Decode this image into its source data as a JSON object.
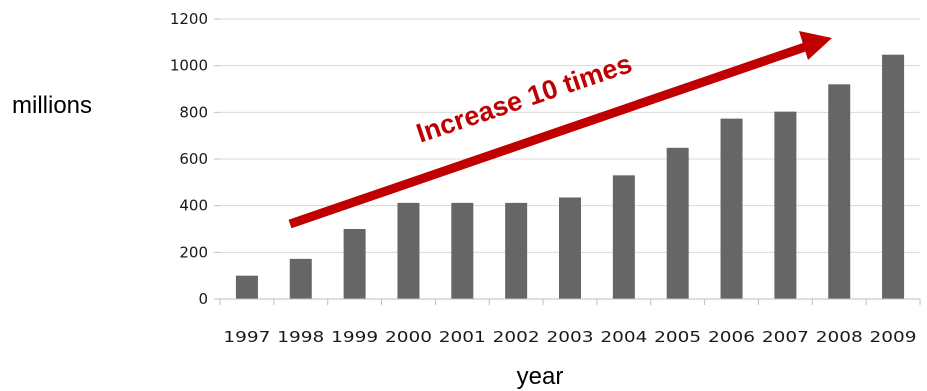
{
  "chart_data": {
    "type": "bar",
    "categories": [
      "1997",
      "1998",
      "1999",
      "2000",
      "2001",
      "2002",
      "2003",
      "2004",
      "2005",
      "2006",
      "2007",
      "2008",
      "2009"
    ],
    "values": [
      100,
      172,
      300,
      412,
      412,
      412,
      435,
      530,
      648,
      773,
      803,
      920,
      1047
    ],
    "title": "",
    "xlabel": "year",
    "ylabel": "millions",
    "ylim": [
      0,
      1200
    ],
    "yticks": [
      0,
      200,
      400,
      600,
      800,
      1000,
      1200
    ],
    "grid": true,
    "legend": "none",
    "bar_color": "#666666",
    "annotation": {
      "text": "Increase 10 times",
      "color": "#c00000"
    }
  }
}
